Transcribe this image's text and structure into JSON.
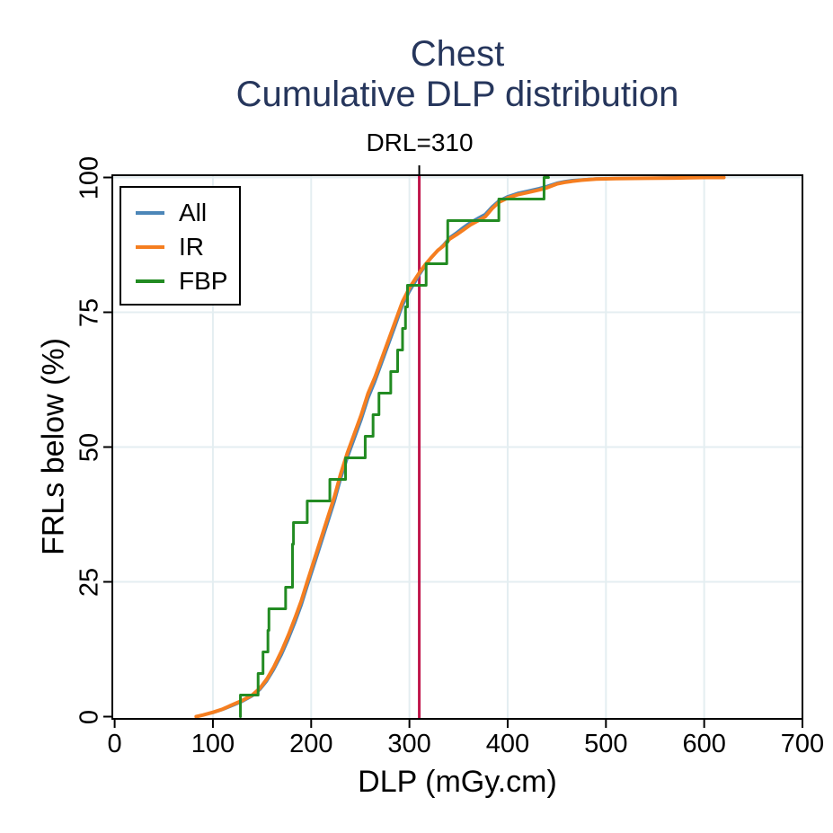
{
  "title": {
    "line1": "Chest",
    "line2": "Cumulative DLP distribution",
    "color": "#26365c"
  },
  "chart_data": {
    "type": "line",
    "title": "Chest - Cumulative DLP distribution",
    "xlabel": "DLP (mGy.cm)",
    "ylabel": "FRLs below (%)",
    "xlim": [
      0,
      700
    ],
    "ylim": [
      0,
      100
    ],
    "x_ticks": [
      0,
      100,
      200,
      300,
      400,
      500,
      600,
      700
    ],
    "y_ticks": [
      0,
      25,
      50,
      75,
      100
    ],
    "grid": true,
    "grid_color": "#e4eef1",
    "annotation": {
      "label": "DRL=310",
      "x": 310,
      "color": "#c0154a"
    },
    "legend": {
      "position": "top-left",
      "entries": [
        {
          "label": "All",
          "color": "#4c86b8"
        },
        {
          "label": "IR",
          "color": "#f57e20"
        },
        {
          "label": "FBP",
          "color": "#228b22"
        }
      ]
    },
    "series": [
      {
        "name": "All",
        "color": "#4c86b8",
        "style": "line",
        "width": 3,
        "points": [
          [
            83,
            0
          ],
          [
            90,
            0.3
          ],
          [
            100,
            0.7
          ],
          [
            110,
            1.3
          ],
          [
            121,
            2.1
          ],
          [
            130,
            2.8
          ],
          [
            140,
            3.8
          ],
          [
            148,
            5
          ],
          [
            155,
            6.6
          ],
          [
            162,
            8.7
          ],
          [
            170,
            11.5
          ],
          [
            177,
            14.4
          ],
          [
            184,
            17.6
          ],
          [
            190,
            20.6
          ],
          [
            196,
            24.1
          ],
          [
            203,
            28
          ],
          [
            210,
            32
          ],
          [
            217,
            36
          ],
          [
            224,
            40
          ],
          [
            230,
            44
          ],
          [
            237,
            48
          ],
          [
            244,
            51.5
          ],
          [
            251,
            55
          ],
          [
            258,
            59
          ],
          [
            265,
            62.1
          ],
          [
            272,
            65.6
          ],
          [
            279,
            69.1
          ],
          [
            286,
            72.6
          ],
          [
            293,
            76.2
          ],
          [
            300,
            78.8
          ],
          [
            306,
            80.6
          ],
          [
            310,
            81.9
          ],
          [
            316,
            83.5
          ],
          [
            322,
            85
          ],
          [
            329,
            86.5
          ],
          [
            334,
            87.4
          ],
          [
            341,
            88.9
          ],
          [
            348,
            89.8
          ],
          [
            355,
            90.8
          ],
          [
            362,
            91.7
          ],
          [
            370,
            92.5
          ],
          [
            377,
            93.2
          ],
          [
            384,
            94.6
          ],
          [
            391,
            95.7
          ],
          [
            400,
            96.5
          ],
          [
            410,
            97.1
          ],
          [
            420,
            97.5
          ],
          [
            432,
            98
          ],
          [
            440,
            98.4
          ],
          [
            450,
            99
          ],
          [
            458,
            99.3
          ],
          [
            466,
            99.5
          ],
          [
            475,
            99.6
          ],
          [
            490,
            99.8
          ],
          [
            510,
            99.85
          ],
          [
            540,
            99.9
          ],
          [
            570,
            100
          ],
          [
            600,
            100
          ],
          [
            620,
            100
          ]
        ]
      },
      {
        "name": "IR",
        "color": "#f57e20",
        "style": "line",
        "width": 4,
        "points": [
          [
            83,
            0
          ],
          [
            90,
            0.3
          ],
          [
            100,
            0.8
          ],
          [
            110,
            1.4
          ],
          [
            121,
            2.3
          ],
          [
            130,
            3
          ],
          [
            140,
            4
          ],
          [
            148,
            5.3
          ],
          [
            155,
            7
          ],
          [
            162,
            9.2
          ],
          [
            170,
            12.2
          ],
          [
            177,
            15.2
          ],
          [
            184,
            18.5
          ],
          [
            190,
            21.5
          ],
          [
            196,
            25
          ],
          [
            203,
            29
          ],
          [
            210,
            33
          ],
          [
            217,
            37
          ],
          [
            224,
            41
          ],
          [
            230,
            45
          ],
          [
            237,
            49
          ],
          [
            244,
            52.5
          ],
          [
            251,
            56
          ],
          [
            258,
            60
          ],
          [
            265,
            63
          ],
          [
            272,
            66.5
          ],
          [
            279,
            70
          ],
          [
            286,
            73.5
          ],
          [
            293,
            77
          ],
          [
            300,
            79.5
          ],
          [
            306,
            81.2
          ],
          [
            310,
            82.3
          ],
          [
            316,
            83.8
          ],
          [
            322,
            85.1
          ],
          [
            329,
            86.5
          ],
          [
            334,
            87.2
          ],
          [
            341,
            88.6
          ],
          [
            348,
            89.4
          ],
          [
            355,
            90.3
          ],
          [
            362,
            91.2
          ],
          [
            370,
            92
          ],
          [
            377,
            92.7
          ],
          [
            384,
            94.2
          ],
          [
            391,
            95.4
          ],
          [
            400,
            96.2
          ],
          [
            410,
            96.8
          ],
          [
            420,
            97.2
          ],
          [
            432,
            97.7
          ],
          [
            440,
            98.1
          ],
          [
            450,
            98.8
          ],
          [
            458,
            99.1
          ],
          [
            466,
            99.3
          ],
          [
            475,
            99.5
          ],
          [
            490,
            99.7
          ],
          [
            510,
            99.8
          ],
          [
            540,
            99.85
          ],
          [
            570,
            99.9
          ],
          [
            600,
            100
          ],
          [
            620,
            100
          ]
        ]
      },
      {
        "name": "FBP",
        "color": "#228b22",
        "style": "step",
        "width": 3,
        "points": [
          [
            128,
            4
          ],
          [
            146,
            8
          ],
          [
            151,
            12
          ],
          [
            156,
            16
          ],
          [
            157,
            20
          ],
          [
            174,
            24
          ],
          [
            181,
            28
          ],
          [
            181,
            32
          ],
          [
            182,
            36
          ],
          [
            196,
            40
          ],
          [
            219,
            44
          ],
          [
            235,
            48
          ],
          [
            255,
            52
          ],
          [
            263,
            56
          ],
          [
            269,
            60
          ],
          [
            281,
            64
          ],
          [
            288,
            68
          ],
          [
            293,
            72
          ],
          [
            296,
            76
          ],
          [
            298,
            80
          ],
          [
            317,
            84
          ],
          [
            338,
            88
          ],
          [
            339,
            92
          ],
          [
            391,
            96
          ],
          [
            437,
            100
          ]
        ]
      }
    ]
  }
}
